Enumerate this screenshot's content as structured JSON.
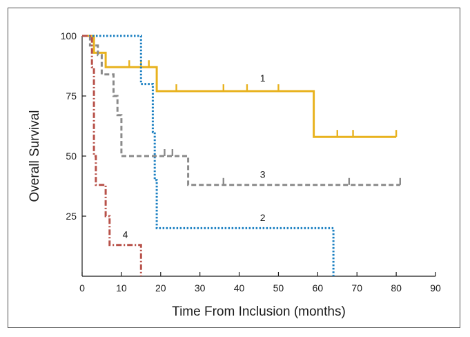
{
  "chart_data": {
    "type": "line",
    "step": true,
    "title": "",
    "xlabel": "Time From Inclusion (months)",
    "ylabel": "Overall Survival",
    "xlim": [
      0,
      90
    ],
    "ylim": [
      0,
      100
    ],
    "xticks": [
      0,
      10,
      20,
      30,
      40,
      50,
      60,
      70,
      80,
      90
    ],
    "yticks": [
      25,
      50,
      75,
      100
    ],
    "grid": false,
    "legend": "none",
    "series": [
      {
        "label": "1",
        "color": "#e8b21e",
        "dash": "solid",
        "x": [
          0,
          3,
          3,
          6,
          6,
          19,
          19,
          59,
          59,
          80
        ],
        "y": [
          100,
          100,
          93,
          93,
          87,
          87,
          77,
          77,
          58,
          58
        ],
        "censor_x": [
          12,
          15,
          17,
          24,
          36,
          42,
          50,
          65,
          69,
          80
        ],
        "label_pos": {
          "x": 46,
          "y": 81
        }
      },
      {
        "label": "2",
        "color": "#1a7fc1",
        "dash": "dotted",
        "x": [
          0,
          15,
          15,
          18,
          18,
          18.5,
          18.5,
          19,
          19,
          64,
          64
        ],
        "y": [
          100,
          100,
          80,
          80,
          60,
          60,
          40,
          40,
          20,
          20,
          0
        ],
        "censor_x": [],
        "label_pos": {
          "x": 46,
          "y": 23
        }
      },
      {
        "label": "3",
        "color": "#8a8a8a",
        "dash": "dashed",
        "x": [
          0,
          2,
          2,
          4,
          4,
          5,
          5,
          8,
          8,
          9,
          9,
          10,
          10,
          27,
          27,
          81
        ],
        "y": [
          100,
          100,
          96,
          96,
          92,
          92,
          84,
          84,
          75,
          75,
          67,
          67,
          50,
          50,
          38,
          38
        ],
        "censor_x": [
          21,
          23,
          36,
          68,
          81
        ],
        "label_pos": {
          "x": 46,
          "y": 41
        }
      },
      {
        "label": "4",
        "color": "#b8524a",
        "dash": "dashdot",
        "x": [
          0,
          2.5,
          2.5,
          3,
          3,
          3.5,
          3.5,
          6,
          6,
          7,
          7,
          15,
          15
        ],
        "y": [
          100,
          100,
          87,
          87,
          50,
          50,
          38,
          38,
          25,
          25,
          13,
          13,
          0
        ],
        "censor_x": [],
        "label_pos": {
          "x": 11,
          "y": 16
        }
      }
    ]
  }
}
